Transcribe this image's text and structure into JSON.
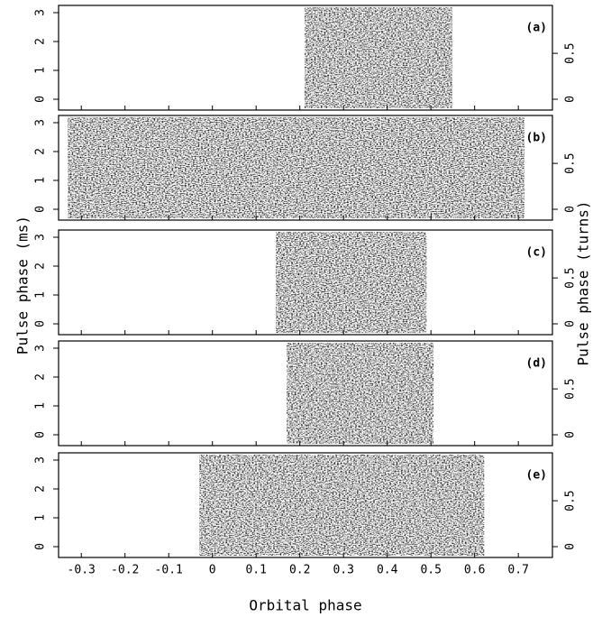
{
  "figure": {
    "xlabel": "Orbital phase",
    "ylabel": "Pulse phase (ms)",
    "y2label": "Pulse phase (turns)"
  },
  "chart_data": [
    {
      "type": "heatmap",
      "label": "(a)",
      "extent": [
        0.211,
        0.549
      ],
      "xlim": [
        -0.352,
        0.778
      ],
      "xticks": [
        -0.3,
        -0.2,
        -0.1,
        0,
        0.1,
        0.2,
        0.3,
        0.4,
        0.5,
        0.6,
        0.7
      ],
      "ylim": [
        -0.375,
        3.25
      ],
      "yticks": [
        0,
        1,
        2,
        3
      ],
      "y2lim": [
        -0.118,
        1.022
      ],
      "y2ticks": [
        0,
        0.5
      ]
    },
    {
      "type": "heatmap",
      "label": "(b)",
      "extent": [
        -0.331,
        0.714
      ],
      "xlim": [
        -0.352,
        0.778
      ],
      "xticks": [
        -0.3,
        -0.2,
        -0.1,
        0,
        0.1,
        0.2,
        0.3,
        0.4,
        0.5,
        0.6,
        0.7
      ],
      "ylim": [
        -0.375,
        3.25
      ],
      "yticks": [
        0,
        1,
        2,
        3
      ],
      "y2lim": [
        -0.118,
        1.022
      ],
      "y2ticks": [
        0,
        0.5
      ]
    },
    {
      "type": "heatmap",
      "label": "(c)",
      "extent": [
        0.145,
        0.49
      ],
      "xlim": [
        -0.352,
        0.778
      ],
      "xticks": [
        -0.3,
        -0.2,
        -0.1,
        0,
        0.1,
        0.2,
        0.3,
        0.4,
        0.5,
        0.6,
        0.7
      ],
      "ylim": [
        -0.375,
        3.25
      ],
      "yticks": [
        0,
        1,
        2,
        3
      ],
      "y2lim": [
        -0.118,
        1.022
      ],
      "y2ticks": [
        0,
        0.5
      ]
    },
    {
      "type": "heatmap",
      "label": "(d)",
      "extent": [
        0.17,
        0.506
      ],
      "xlim": [
        -0.352,
        0.778
      ],
      "xticks": [
        -0.3,
        -0.2,
        -0.1,
        0,
        0.1,
        0.2,
        0.3,
        0.4,
        0.5,
        0.6,
        0.7
      ],
      "ylim": [
        -0.375,
        3.25
      ],
      "yticks": [
        0,
        1,
        2,
        3
      ],
      "y2lim": [
        -0.118,
        1.022
      ],
      "y2ticks": [
        0,
        0.5
      ]
    },
    {
      "type": "heatmap",
      "label": "(e)",
      "extent": [
        -0.03,
        0.622
      ],
      "xlim": [
        -0.352,
        0.778
      ],
      "xticks": [
        -0.3,
        -0.2,
        -0.1,
        0,
        0.1,
        0.2,
        0.3,
        0.4,
        0.5,
        0.6,
        0.7
      ],
      "ylim": [
        -0.375,
        3.25
      ],
      "yticks": [
        0,
        1,
        2,
        3
      ],
      "y2lim": [
        -0.118,
        1.022
      ],
      "y2ticks": [
        0,
        0.5
      ]
    }
  ]
}
